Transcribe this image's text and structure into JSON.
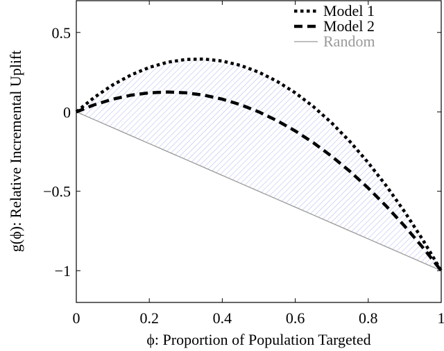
{
  "chart_data": {
    "type": "line",
    "title": "",
    "xlabel": "ϕ: Proportion of Population Targeted",
    "ylabel": "g(ϕ): Relative Incremental Uplift",
    "xlim": [
      0,
      1
    ],
    "ylim": [
      -1.2,
      0.7
    ],
    "xticks": [
      0,
      0.2,
      0.4,
      0.6,
      0.8,
      1
    ],
    "xtick_labels": [
      "0",
      "0.2",
      "0.4",
      "0.6",
      "0.8",
      "1"
    ],
    "yticks": [
      0.5,
      0,
      -0.5,
      -1
    ],
    "ytick_labels": [
      "0.5",
      "0",
      "−0.5",
      "−1"
    ],
    "grid": false,
    "legend_position": "top-right",
    "x": [
      0,
      0.05,
      0.1,
      0.15,
      0.2,
      0.25,
      0.3,
      0.35,
      0.4,
      0.45,
      0.5,
      0.55,
      0.6,
      0.65,
      0.7,
      0.75,
      0.8,
      0.85,
      0.9,
      0.95,
      1
    ],
    "series": [
      {
        "name": "Model 1",
        "style": "dotted",
        "color": "#000000",
        "values": [
          0,
          0.0925,
          0.17,
          0.2325,
          0.28,
          0.3125,
          0.33,
          0.3325,
          0.32,
          0.2925,
          0.25,
          0.1925,
          0.12,
          0.0325,
          -0.07,
          -0.1875,
          -0.32,
          -0.4675,
          -0.63,
          -0.8075,
          -1
        ]
      },
      {
        "name": "Model 2",
        "style": "dashed",
        "color": "#000000",
        "values": [
          0,
          0.045,
          0.08,
          0.105,
          0.12,
          0.125,
          0.12,
          0.105,
          0.08,
          0.045,
          0,
          -0.055,
          -0.12,
          -0.195,
          -0.28,
          -0.375,
          -0.48,
          -0.595,
          -0.72,
          -0.855,
          -1
        ]
      },
      {
        "name": "Random",
        "style": "solid",
        "color": "#999999",
        "values": [
          0,
          -0.05,
          -0.1,
          -0.15,
          -0.2,
          -0.25,
          -0.3,
          -0.35,
          -0.4,
          -0.45,
          -0.5,
          -0.55,
          -0.6,
          -0.65,
          -0.7,
          -0.75,
          -0.8,
          -0.85,
          -0.9,
          -0.95,
          -1
        ]
      }
    ],
    "shaded_region": {
      "between": [
        "Model 1",
        "Random"
      ],
      "pattern": "diagonal-hatch",
      "color": "#b8bff0"
    }
  }
}
